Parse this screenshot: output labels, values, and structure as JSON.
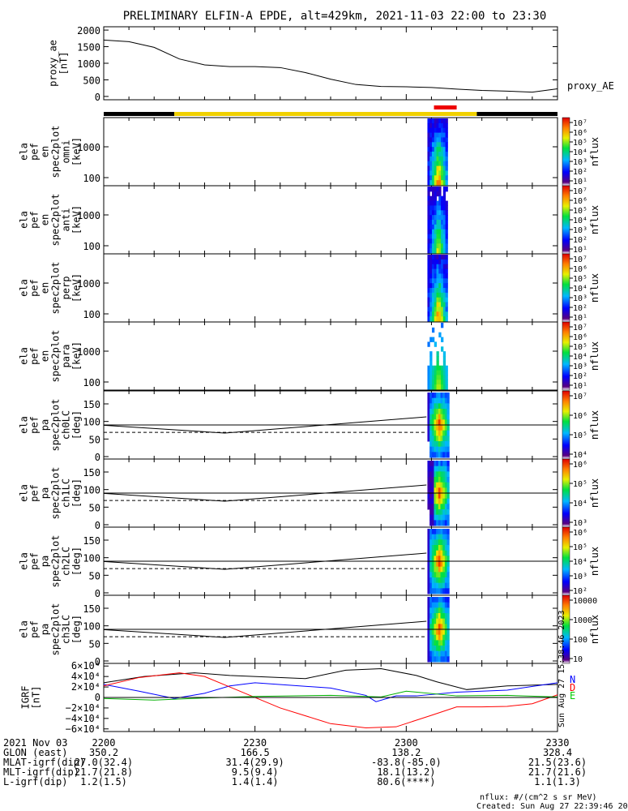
{
  "title": "PRELIMINARY ELFIN-A EPDE, alt=429km, 2021-11-03 22:00 to 23:30",
  "x_range_min": [
    0,
    90
  ],
  "ae_panel": {
    "ylabel": [
      "proxy_ae",
      "[nT]"
    ],
    "legend": "proxy_AE",
    "yticks": [
      "2000",
      "1500",
      "1000",
      "500",
      "0"
    ],
    "ylim": [
      -100,
      2100
    ],
    "x": [
      0,
      5,
      10,
      15,
      20,
      25,
      30,
      35,
      40,
      45,
      50,
      55,
      60,
      65,
      70,
      75,
      80,
      85,
      90
    ],
    "y": [
      1700,
      1650,
      1480,
      1130,
      950,
      900,
      900,
      870,
      720,
      520,
      360,
      300,
      290,
      270,
      220,
      180,
      160,
      130,
      230
    ]
  },
  "orbit_bar": {
    "segments": [
      {
        "from": 0,
        "to": 14,
        "color": "#000000"
      },
      {
        "from": 14,
        "to": 74,
        "color": "#f0d000"
      },
      {
        "from": 74,
        "to": 90,
        "color": "#000000"
      }
    ],
    "red_marker": {
      "from": 65.5,
      "to": 70
    }
  },
  "energy_panels": [
    {
      "ylabel": [
        "ela",
        "pef",
        "en",
        "spec2plot",
        "omni",
        "[keV]"
      ],
      "yticks": [
        "1000",
        "100"
      ],
      "zlabel": "nflux",
      "cbar_labels": [
        "10⁷",
        "10⁶",
        "10⁵",
        "10⁴",
        "10³",
        "10²",
        "10¹"
      ]
    },
    {
      "ylabel": [
        "ela",
        "pef",
        "en",
        "spec2plot",
        "anti",
        "[keV]"
      ],
      "yticks": [
        "1000",
        "100"
      ],
      "zlabel": "nflux",
      "cbar_labels": [
        "10⁷",
        "10⁶",
        "10⁵",
        "10⁴",
        "10³",
        "10²",
        "10¹"
      ]
    },
    {
      "ylabel": [
        "ela",
        "pef",
        "en",
        "spec2plot",
        "perp",
        "[keV]"
      ],
      "yticks": [
        "1000",
        "100"
      ],
      "zlabel": "nflux",
      "cbar_labels": [
        "10⁷",
        "10⁶",
        "10⁵",
        "10⁴",
        "10³",
        "10²",
        "10¹"
      ]
    },
    {
      "ylabel": [
        "ela",
        "pef",
        "en",
        "spec2plot",
        "para",
        "[keV]"
      ],
      "yticks": [
        "1000",
        "100"
      ],
      "zlabel": "nflux",
      "cbar_labels": [
        "10⁷",
        "10⁶",
        "10⁵",
        "10⁴",
        "10³",
        "10²",
        "10¹"
      ]
    }
  ],
  "pa_panels": [
    {
      "ylabel": [
        "ela",
        "pef",
        "pa",
        "spec2plot",
        "ch0LC",
        "[deg]"
      ],
      "yticks": [
        "150",
        "100",
        "50",
        "0"
      ],
      "zlabel": "nflux",
      "cbar_labels": [
        "10⁷",
        "10⁶",
        "10⁵",
        "10⁴"
      ]
    },
    {
      "ylabel": [
        "ela",
        "pef",
        "pa",
        "spec2plot",
        "ch1LC",
        "[deg]"
      ],
      "yticks": [
        "150",
        "100",
        "50",
        "0"
      ],
      "zlabel": "nflux",
      "cbar_labels": [
        "10⁶",
        "10⁵",
        "10⁴",
        "10³"
      ]
    },
    {
      "ylabel": [
        "ela",
        "pef",
        "pa",
        "spec2plot",
        "ch2LC",
        "[deg]"
      ],
      "yticks": [
        "150",
        "100",
        "50",
        "0"
      ],
      "zlabel": "nflux",
      "cbar_labels": [
        "10⁶",
        "10⁵",
        "10⁴",
        "10³",
        "10²"
      ]
    },
    {
      "ylabel": [
        "ela",
        "pef",
        "pa",
        "spec2plot",
        "ch3LC",
        "[deg]"
      ],
      "yticks": [
        "150",
        "100",
        "50",
        "0"
      ],
      "zlabel": "nflux",
      "cbar_labels": [
        "10000",
        "1000",
        "100",
        "10"
      ]
    }
  ],
  "lc_curves": {
    "x": [
      0,
      24,
      64
    ],
    "solid": [
      89,
      67,
      113
    ],
    "dashed": [
      69,
      69
    ],
    "dashed_x": [
      0,
      64
    ]
  },
  "b_panel": {
    "ylabel": [
      "IGRF",
      "[nT]"
    ],
    "yticks": [
      "6×10⁴",
      "4×10⁴",
      "2×10⁴",
      "0",
      "−2×10⁴",
      "−4×10⁴",
      "−6×10⁴"
    ],
    "ylim": [
      -65000,
      65000
    ],
    "legend": [
      "N",
      "D",
      "E"
    ],
    "legend_colors": [
      "#0000ff",
      "#ff0000",
      "#00cc00"
    ],
    "side_stamp": "Sun Aug 27 15:38:46 2023",
    "series": [
      {
        "color": "#000000",
        "x": [
          0,
          8,
          18,
          25,
          40,
          48,
          55,
          62,
          66,
          72,
          80,
          90
        ],
        "y": [
          28000,
          40000,
          47000,
          42000,
          36000,
          52000,
          55000,
          42000,
          30000,
          15000,
          22000,
          25000
        ]
      },
      {
        "color": "#0000ff",
        "x": [
          0,
          7,
          14,
          20,
          25,
          30,
          45,
          52,
          54,
          58,
          62,
          70,
          80,
          90
        ],
        "y": [
          25000,
          12000,
          -2000,
          8000,
          22000,
          28000,
          18000,
          4000,
          -8000,
          3000,
          3000,
          10000,
          14000,
          28000
        ]
      },
      {
        "color": "#ff0000",
        "x": [
          0,
          7,
          15,
          20,
          25,
          35,
          45,
          52,
          58,
          65,
          70,
          75,
          80,
          85,
          90
        ],
        "y": [
          22000,
          38000,
          47000,
          40000,
          20000,
          -20000,
          -50000,
          -58000,
          -56000,
          -34000,
          -18000,
          -18000,
          -17000,
          -12000,
          5000
        ]
      },
      {
        "color": "#00b000",
        "x": [
          0,
          10,
          20,
          30,
          45,
          55,
          60,
          70,
          80,
          90
        ],
        "y": [
          -2000,
          -5000,
          -1000,
          2000,
          4000,
          1000,
          12000,
          3000,
          4000,
          1000
        ]
      },
      {
        "color": "#000000",
        "x": [
          0,
          90
        ],
        "y": [
          0,
          0
        ]
      }
    ]
  },
  "time_table": {
    "rows": [
      {
        "label": "2021 Nov 03",
        "vals": [
          "2200",
          "2230",
          "2300",
          "2330"
        ]
      },
      {
        "label": "GLON (east)",
        "vals": [
          "350.2",
          "166.5",
          "138.2",
          "328.4"
        ]
      },
      {
        "label": "MLAT-igrf(dip)",
        "vals": [
          "27.0(32.4)",
          "31.4(29.9)",
          "-83.8(-85.0)",
          "21.5(23.6)"
        ]
      },
      {
        "label": "MLT-igrf(dip)",
        "vals": [
          "21.7(21.8)",
          "9.5(9.4)",
          "18.1(13.2)",
          "21.7(21.6)"
        ]
      },
      {
        "label": "L-igrf(dip)",
        "vals": [
          "1.2(1.5)",
          "1.4(1.4)",
          "80.6(****)",
          "1.1(1.3)"
        ]
      }
    ]
  },
  "footer": {
    "units": "nflux: #/(cm^2 s sr MeV)",
    "created": "Created: Sun Aug 27 22:39:46 2023"
  }
}
